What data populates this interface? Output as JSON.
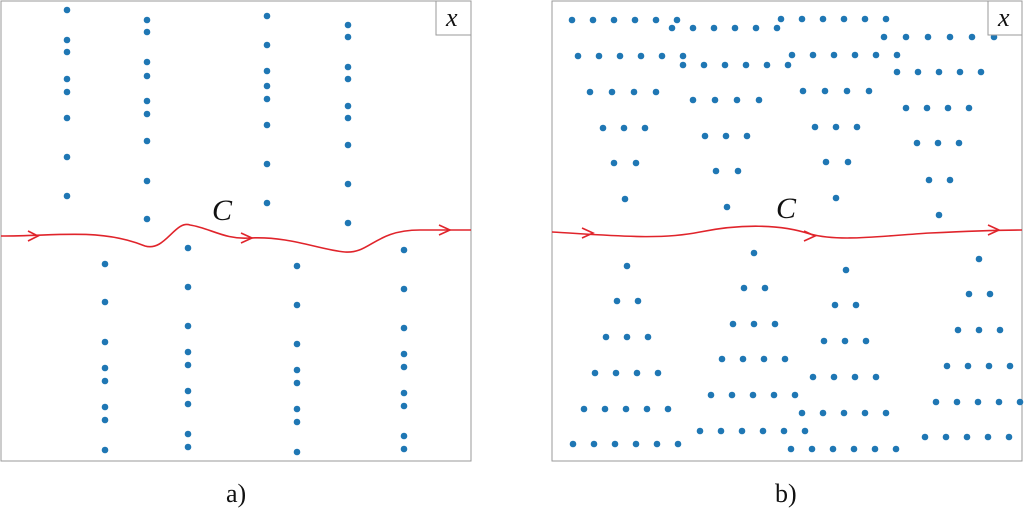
{
  "colors": {
    "dot": "#1f77b4",
    "curve": "#e0242b",
    "frame": "#9a9a9a"
  },
  "panels": [
    {
      "id": "a",
      "corner_label": "x",
      "curve_label": "C",
      "caption": "a)"
    },
    {
      "id": "b",
      "corner_label": "x",
      "curve_label": "C",
      "caption": "b)"
    }
  ]
}
